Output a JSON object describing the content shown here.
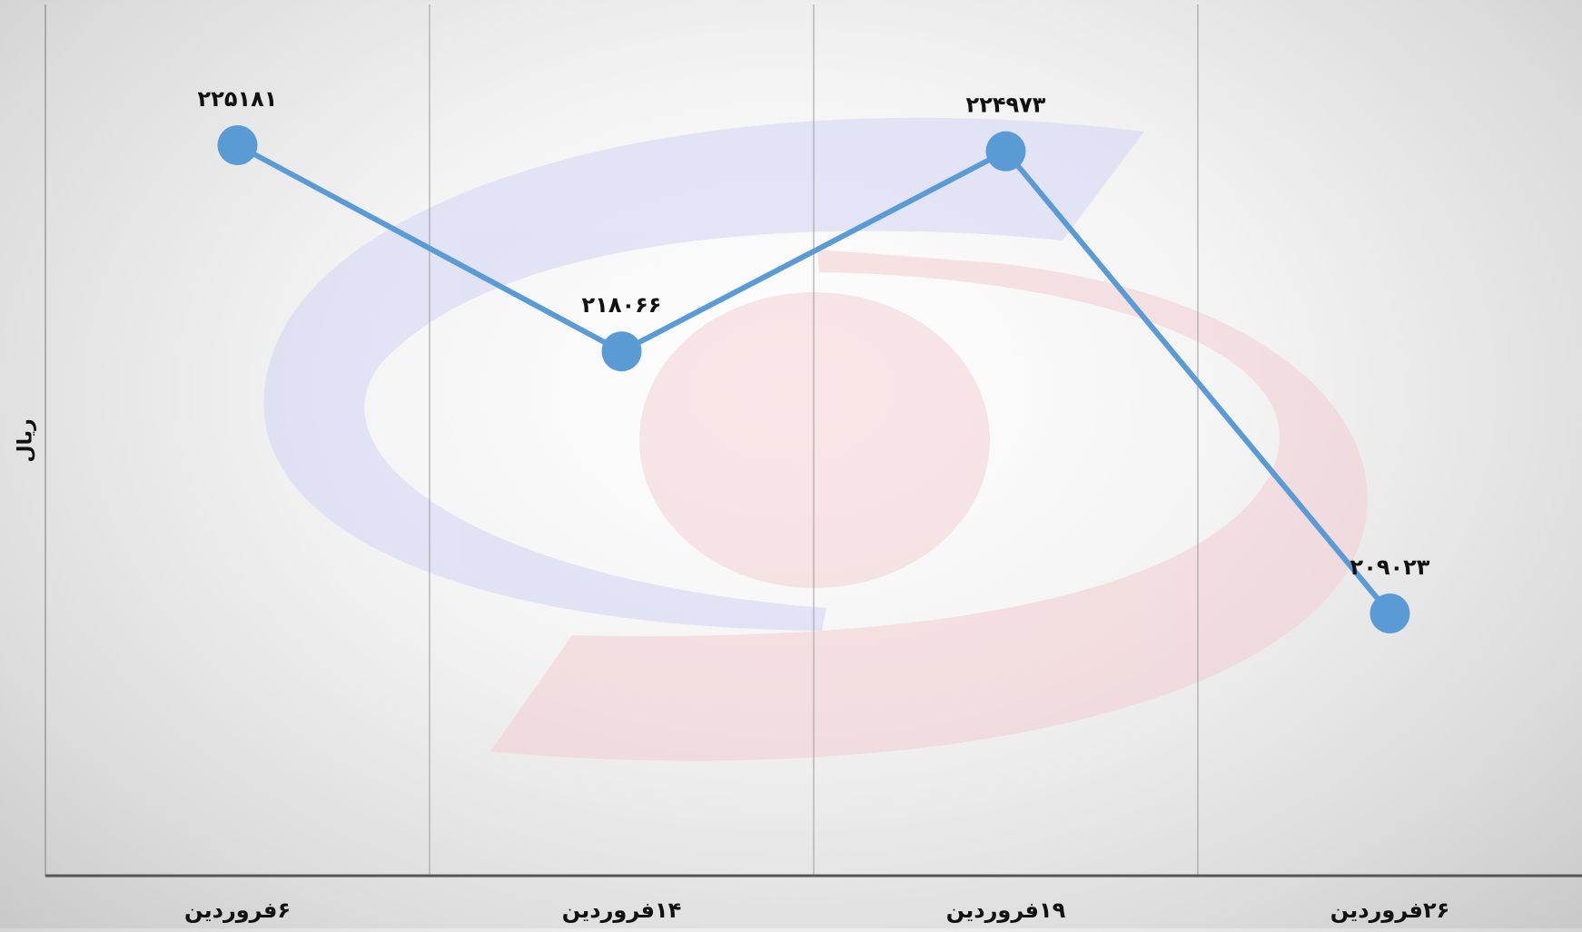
{
  "chart_data": {
    "type": "line",
    "categories": [
      "۶فروردین",
      "۱۴فروردین",
      "۱۹فروردین",
      "۲۶فروردین"
    ],
    "values": [
      225181,
      218066,
      224973,
      209023
    ],
    "data_labels": [
      "۲۲۵۱۸۱",
      "۲۱۸۰۶۶",
      "۲۲۴۹۷۳",
      "۲۰۹۰۲۳"
    ],
    "ylabel": "ریال",
    "xlabel": "",
    "title": "",
    "ylim": [
      200000,
      230000
    ],
    "grid": "vertical",
    "legend": "none",
    "colors": {
      "line": "#5b9bd5",
      "marker": "#5b9bd5",
      "axis": "#555555",
      "grid": "#9a9a9a",
      "text": "#111111",
      "watermark_blue": "#c8c8f2",
      "watermark_red": "#f2c4c8"
    }
  }
}
